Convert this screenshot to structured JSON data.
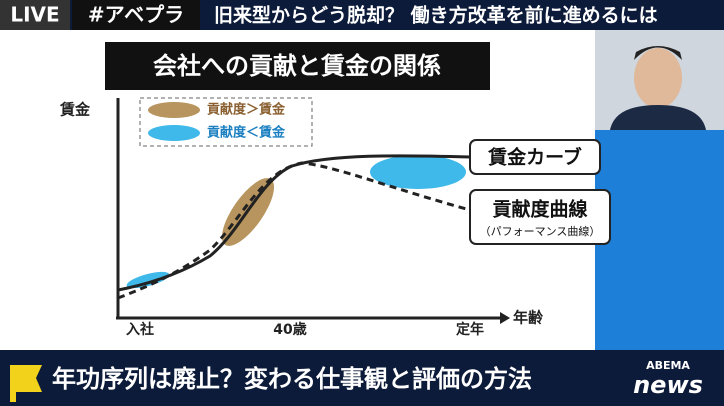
{
  "header": {
    "live": "LIVE",
    "hashtag": "#アベプラ",
    "headline": "旧来型からどう脱却？ 働き方改革を前に進めるには"
  },
  "diagram": {
    "title": "会社への貢献と賃金の関係",
    "y_axis_label": "賃金",
    "x_axis_label": "年齢",
    "legend": [
      "貢献度＞賃金",
      "貢献度＜賃金"
    ],
    "x_labels": [
      "入社",
      "40歳",
      "定年"
    ],
    "wage_curve_label": "賃金カーブ",
    "contribution_curve_label": "貢献度曲線",
    "contribution_curve_sublabel": "（パフォーマンス曲線）"
  },
  "footer": {
    "caption": "年功序列は廃止？変わる仕事観と評価の方法",
    "logo_top": "ABEMA",
    "logo_bottom": "news"
  }
}
